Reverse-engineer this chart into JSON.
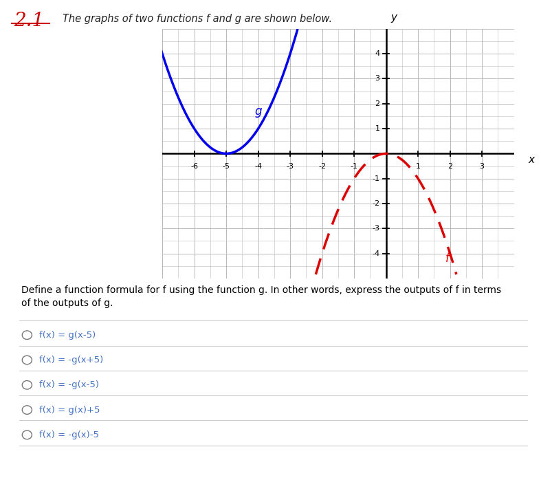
{
  "title": "2.1",
  "heading": "The graphs of two functions f and g are shown below.",
  "xlim": [
    -7.0,
    4.0
  ],
  "ylim": [
    -5.0,
    5.0
  ],
  "xticks": [
    -6,
    -5,
    -4,
    -3,
    -2,
    -1,
    1,
    2,
    3
  ],
  "yticks": [
    -4,
    -3,
    -2,
    -1,
    1,
    2,
    3,
    4
  ],
  "g_label": "g",
  "f_label": "f",
  "g_color": "#0000EE",
  "f_color": "#DD0000",
  "question_text": "Define a function formula for f using the function g. In other words, express the outputs of f in terms of the outputs of g.",
  "options": [
    "f(x) = g(x-5)",
    "f(x) = -g(x+5)",
    "f(x) = -g(x-5)",
    "f(x) = g(x)+5",
    "f(x) = -g(x)-5"
  ],
  "figure_bg": "#FFFFFF",
  "grid_color": "#BBBBBB",
  "axis_color": "#000000",
  "option_color": "#4472C4",
  "question_color": "#000000",
  "title_color": "#CC0000"
}
